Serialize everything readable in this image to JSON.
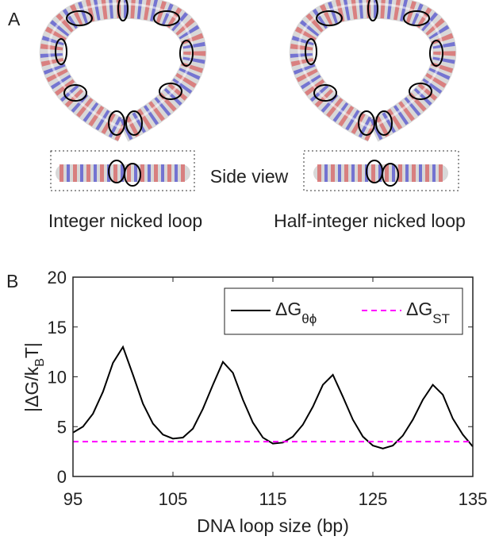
{
  "panel_a": {
    "label": "A",
    "side_view": "Side view",
    "left_caption": "Integer nicked loop",
    "right_caption": "Half-integer nicked loop"
  },
  "chart_data": {
    "type": "line",
    "panel_label": "B",
    "xlabel": "DNA loop size (bp)",
    "ylabel": [
      "|ΔG/k",
      "B",
      "T|"
    ],
    "x": [
      95,
      96,
      97,
      98,
      99,
      100,
      101,
      102,
      103,
      104,
      105,
      106,
      107,
      108,
      109,
      110,
      111,
      112,
      113,
      114,
      115,
      116,
      117,
      118,
      119,
      120,
      121,
      122,
      123,
      124,
      125,
      126,
      127,
      128,
      129,
      130,
      131,
      132,
      133,
      134,
      135
    ],
    "series": [
      {
        "name": "ΔG",
        "name_sub": "θϕ",
        "color": "#000000",
        "dash": false,
        "values": [
          4.4,
          5.0,
          6.3,
          8.5,
          11.4,
          13.0,
          10.2,
          7.3,
          5.3,
          4.2,
          3.8,
          3.9,
          4.8,
          6.8,
          9.2,
          11.5,
          10.4,
          7.7,
          5.4,
          3.9,
          3.3,
          3.4,
          4.0,
          5.2,
          7.0,
          9.2,
          10.2,
          8.0,
          5.7,
          4.0,
          3.1,
          2.8,
          3.1,
          4.1,
          5.7,
          7.7,
          9.2,
          8.2,
          5.8,
          4.2,
          3.0
        ]
      },
      {
        "name": "ΔG",
        "name_sub": "ST",
        "color": "#ff00ff",
        "dash": true,
        "values": [
          3.5,
          3.5,
          3.5,
          3.5,
          3.5,
          3.5,
          3.5,
          3.5,
          3.5,
          3.5,
          3.5,
          3.5,
          3.5,
          3.5,
          3.5,
          3.5,
          3.5,
          3.5,
          3.5,
          3.5,
          3.5,
          3.5,
          3.5,
          3.5,
          3.5,
          3.5,
          3.5,
          3.5,
          3.5,
          3.5,
          3.5,
          3.5,
          3.5,
          3.5,
          3.5,
          3.5,
          3.5,
          3.5,
          3.5,
          3.5,
          3.5
        ]
      }
    ],
    "xlim": [
      95,
      135
    ],
    "xticks": [
      95,
      105,
      115,
      125,
      135
    ],
    "ylim": [
      0,
      20
    ],
    "yticks": [
      0,
      5,
      10,
      15,
      20
    ],
    "legend": "upper right",
    "grid": false
  }
}
